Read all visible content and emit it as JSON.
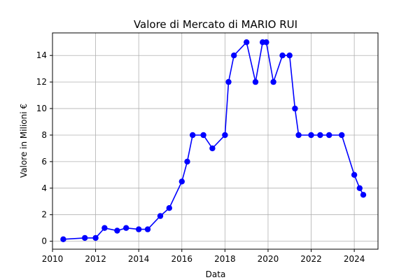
{
  "chart_data": {
    "type": "line",
    "title": "Valore di Mercato di MARIO RUI",
    "xlabel": "Data",
    "ylabel": "Valore in Milioni €",
    "xlim": [
      2010.0,
      2025.1
    ],
    "ylim": [
      -0.6,
      15.7
    ],
    "xticks": [
      2010,
      2012,
      2014,
      2016,
      2018,
      2020,
      2022,
      2024
    ],
    "yticks": [
      0,
      2,
      4,
      6,
      8,
      10,
      12,
      14
    ],
    "grid": true,
    "line_color": "#0000ff",
    "series": [
      {
        "x": [
          "2010-07",
          "2011-07",
          "2012-01",
          "2012-06",
          "2013-01",
          "2013-06",
          "2014-01",
          "2014-06",
          "2015-01",
          "2015-06",
          "2016-01",
          "2016-04",
          "2016-07",
          "2017-01",
          "2017-06",
          "2018-01",
          "2018-03",
          "2018-06",
          "2019-01",
          "2019-06",
          "2019-10",
          "2019-12",
          "2020-04",
          "2020-09",
          "2021-01",
          "2021-04",
          "2021-06",
          "2022-01",
          "2022-06",
          "2022-11",
          "2023-06",
          "2024-01",
          "2024-04",
          "2024-06"
        ],
        "values": [
          0.15,
          0.25,
          0.25,
          1.0,
          0.8,
          1.0,
          0.9,
          0.9,
          1.9,
          2.5,
          4.5,
          6.0,
          8.0,
          8.0,
          7.0,
          8.0,
          12.0,
          14.0,
          15.0,
          12.0,
          15.0,
          15.0,
          12.0,
          14.0,
          14.0,
          10.0,
          8.0,
          8.0,
          8.0,
          8.0,
          8.0,
          5.0,
          4.0,
          3.5
        ]
      }
    ]
  }
}
